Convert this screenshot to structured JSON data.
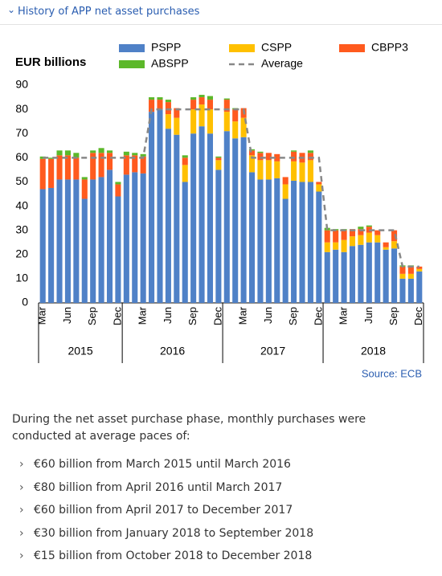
{
  "header": {
    "title": "History of APP net asset purchases"
  },
  "chart_data": {
    "type": "bar",
    "stacked": true,
    "y_label": "EUR billions",
    "source": "Source: ECB",
    "categories": [
      "Mar",
      null,
      null,
      "Jun",
      null,
      null,
      "Sep",
      null,
      null,
      "Dec",
      null,
      null,
      "Mar",
      null,
      null,
      "Jun",
      null,
      null,
      "Sep",
      null,
      null,
      "Dec",
      null,
      null,
      "Mar",
      null,
      null,
      "Jun",
      null,
      null,
      "Sep",
      null,
      null,
      "Dec",
      null,
      null,
      "Mar",
      null,
      null,
      "Jun",
      null,
      null,
      "Sep",
      null,
      null,
      "Dec"
    ],
    "year_groups": [
      "2015",
      "2016",
      "2017",
      "2018"
    ],
    "ylim": [
      0,
      90
    ],
    "yticks": [
      0,
      10,
      20,
      30,
      40,
      50,
      60,
      70,
      80,
      90
    ],
    "grid": false,
    "series": [
      {
        "name": "PSPP",
        "color": "#4f81c7",
        "values": [
          47,
          47.5,
          51,
          51,
          51,
          43,
          51,
          52,
          55,
          44,
          53,
          54,
          53.5,
          79,
          80,
          72,
          69.5,
          50,
          70,
          73,
          70,
          55,
          71,
          68,
          68.5,
          54,
          51,
          51,
          51.5,
          43,
          50.5,
          50,
          50,
          46,
          21,
          22,
          21,
          23.5,
          24,
          25,
          25,
          22,
          22.5,
          10,
          10,
          13
        ]
      },
      {
        "name": "CSPP",
        "color": "#ffc000",
        "values": [
          0,
          0,
          0,
          0,
          0,
          0,
          0,
          0,
          0,
          0,
          0,
          0,
          0,
          0,
          0,
          6,
          7,
          7,
          10,
          9,
          10,
          4,
          8,
          7,
          8,
          7,
          8,
          8,
          7,
          6,
          8,
          8,
          9,
          3,
          4,
          3,
          5,
          4,
          4,
          4,
          3,
          1,
          3,
          2,
          2,
          1
        ]
      },
      {
        "name": "CBPP3",
        "color": "#ff5a1e",
        "values": [
          12.5,
          12,
          10,
          10,
          9,
          8,
          11,
          10,
          7,
          5,
          8,
          7,
          7,
          5,
          4,
          5,
          4,
          3,
          4,
          3,
          4,
          1,
          5,
          5,
          4,
          2,
          3,
          3,
          3,
          3,
          4,
          4,
          3,
          1,
          5,
          5,
          4,
          3,
          2.5,
          2.5,
          2,
          2,
          4.5,
          3,
          3,
          1
        ]
      },
      {
        "name": "ABSPP",
        "color": "#5cb82a",
        "values": [
          1,
          0.5,
          2,
          2,
          2,
          1,
          1,
          2,
          1,
          1,
          1.5,
          1,
          1,
          1,
          1,
          1,
          0,
          1,
          1,
          1,
          1.5,
          0.5,
          0.5,
          0.5,
          0,
          0.5,
          0.5,
          0,
          0,
          0,
          0.5,
          0,
          1,
          0,
          1,
          0.5,
          0.5,
          0,
          1,
          0.5,
          0,
          0,
          0,
          0.5,
          0.5,
          0
        ]
      },
      {
        "name": "Average",
        "type": "line",
        "style": "dashed",
        "color": "#888888",
        "values": [
          60,
          60,
          60,
          60,
          60,
          60,
          60,
          60,
          60,
          60,
          60,
          60,
          60,
          80,
          80,
          80,
          80,
          80,
          80,
          80,
          80,
          80,
          80,
          80,
          80,
          60,
          60,
          60,
          60,
          60,
          60,
          60,
          60,
          60,
          30,
          30,
          30,
          30,
          30,
          30,
          30,
          30,
          30,
          15,
          15,
          15
        ]
      }
    ]
  },
  "intro": "During the net asset purchase phase, monthly purchases were conducted at average paces of:",
  "list": [
    "€60 billion from March 2015 until March 2016",
    "€80 billion from April 2016 until March 2017",
    "€60 billion from April 2017 to December 2017",
    "€30 billion from January 2018 to September 2018",
    "€15 billion from October 2018 to December 2018"
  ]
}
